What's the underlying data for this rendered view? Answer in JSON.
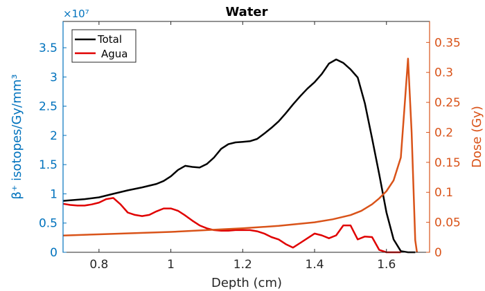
{
  "chart_data": {
    "type": "line",
    "title": "Water",
    "xlabel": "Depth (cm)",
    "ylabel_left": "β⁺ isotopes/Gy/mm³",
    "ylabel_right": "Dose (Gy)",
    "left_axis_exponent": "×10⁷",
    "xlim": [
      0.7,
      1.72
    ],
    "ylim_left": [
      0,
      3.95
    ],
    "ylim_right": [
      0,
      0.385
    ],
    "x_ticks": [
      0.8,
      1.0,
      1.2,
      1.4,
      1.6
    ],
    "x_tick_labels": [
      "0.8",
      "1",
      "1.2",
      "1.4",
      "1.6"
    ],
    "y_left_ticks": [
      0,
      0.5,
      1,
      1.5,
      2,
      2.5,
      3,
      3.5
    ],
    "y_left_tick_labels": [
      "0",
      "0.5",
      "1",
      "1.5",
      "2",
      "2.5",
      "3",
      "3.5"
    ],
    "y_right_ticks": [
      0,
      0.05,
      0.1,
      0.15,
      0.2,
      0.25,
      0.3,
      0.35
    ],
    "y_right_tick_labels": [
      "0",
      "0.05",
      "0.1",
      "0.15",
      "0.2",
      "0.25",
      "0.3",
      "0.35"
    ],
    "grid": false,
    "legend_position": "top-left",
    "series": [
      {
        "name": "Total",
        "axis": "left",
        "color": "#000000",
        "points": [
          [
            0.7,
            0.88
          ],
          [
            0.72,
            0.89
          ],
          [
            0.76,
            0.91
          ],
          [
            0.8,
            0.94
          ],
          [
            0.84,
            1.0
          ],
          [
            0.88,
            1.06
          ],
          [
            0.92,
            1.11
          ],
          [
            0.96,
            1.17
          ],
          [
            0.98,
            1.22
          ],
          [
            1.0,
            1.3
          ],
          [
            1.02,
            1.41
          ],
          [
            1.04,
            1.48
          ],
          [
            1.06,
            1.46
          ],
          [
            1.08,
            1.45
          ],
          [
            1.1,
            1.51
          ],
          [
            1.12,
            1.62
          ],
          [
            1.14,
            1.77
          ],
          [
            1.16,
            1.85
          ],
          [
            1.18,
            1.88
          ],
          [
            1.2,
            1.89
          ],
          [
            1.22,
            1.9
          ],
          [
            1.24,
            1.94
          ],
          [
            1.26,
            2.03
          ],
          [
            1.28,
            2.13
          ],
          [
            1.3,
            2.24
          ],
          [
            1.32,
            2.38
          ],
          [
            1.34,
            2.53
          ],
          [
            1.36,
            2.67
          ],
          [
            1.38,
            2.8
          ],
          [
            1.4,
            2.91
          ],
          [
            1.42,
            3.05
          ],
          [
            1.44,
            3.23
          ],
          [
            1.46,
            3.3
          ],
          [
            1.48,
            3.24
          ],
          [
            1.5,
            3.13
          ],
          [
            1.52,
            2.99
          ],
          [
            1.54,
            2.55
          ],
          [
            1.56,
            1.95
          ],
          [
            1.58,
            1.33
          ],
          [
            1.6,
            0.68
          ],
          [
            1.62,
            0.22
          ],
          [
            1.64,
            0.02
          ],
          [
            1.66,
            0.0
          ],
          [
            1.68,
            0.0
          ]
        ]
      },
      {
        "name": "Agua",
        "axis": "left",
        "color": "#E00000",
        "points": [
          [
            0.7,
            0.83
          ],
          [
            0.72,
            0.81
          ],
          [
            0.74,
            0.8
          ],
          [
            0.76,
            0.8
          ],
          [
            0.78,
            0.82
          ],
          [
            0.8,
            0.85
          ],
          [
            0.82,
            0.91
          ],
          [
            0.84,
            0.93
          ],
          [
            0.86,
            0.82
          ],
          [
            0.88,
            0.68
          ],
          [
            0.9,
            0.64
          ],
          [
            0.92,
            0.62
          ],
          [
            0.94,
            0.64
          ],
          [
            0.96,
            0.7
          ],
          [
            0.98,
            0.75
          ],
          [
            1.0,
            0.75
          ],
          [
            1.02,
            0.71
          ],
          [
            1.04,
            0.63
          ],
          [
            1.06,
            0.54
          ],
          [
            1.08,
            0.46
          ],
          [
            1.1,
            0.41
          ],
          [
            1.12,
            0.38
          ],
          [
            1.14,
            0.37
          ],
          [
            1.16,
            0.37
          ],
          [
            1.18,
            0.38
          ],
          [
            1.2,
            0.38
          ],
          [
            1.22,
            0.38
          ],
          [
            1.24,
            0.36
          ],
          [
            1.26,
            0.32
          ],
          [
            1.28,
            0.26
          ],
          [
            1.3,
            0.22
          ],
          [
            1.32,
            0.14
          ],
          [
            1.34,
            0.08
          ],
          [
            1.36,
            0.16
          ],
          [
            1.38,
            0.24
          ],
          [
            1.4,
            0.32
          ],
          [
            1.42,
            0.29
          ],
          [
            1.44,
            0.24
          ],
          [
            1.46,
            0.29
          ],
          [
            1.48,
            0.46
          ],
          [
            1.5,
            0.46
          ],
          [
            1.52,
            0.22
          ],
          [
            1.54,
            0.27
          ],
          [
            1.56,
            0.26
          ],
          [
            1.58,
            0.04
          ],
          [
            1.6,
            0.0
          ],
          [
            1.62,
            0.0
          ],
          [
            1.64,
            0.0
          ]
        ]
      },
      {
        "name": "",
        "axis": "right",
        "color": "#D95319",
        "points": [
          [
            0.7,
            0.028
          ],
          [
            0.8,
            0.03
          ],
          [
            0.9,
            0.032
          ],
          [
            1.0,
            0.034
          ],
          [
            1.1,
            0.037
          ],
          [
            1.2,
            0.04
          ],
          [
            1.3,
            0.044
          ],
          [
            1.4,
            0.05
          ],
          [
            1.45,
            0.055
          ],
          [
            1.5,
            0.062
          ],
          [
            1.53,
            0.069
          ],
          [
            1.56,
            0.08
          ],
          [
            1.58,
            0.09
          ],
          [
            1.6,
            0.102
          ],
          [
            1.62,
            0.12
          ],
          [
            1.64,
            0.158
          ],
          [
            1.65,
            0.24
          ],
          [
            1.66,
            0.323
          ],
          [
            1.67,
            0.2
          ],
          [
            1.68,
            0.02
          ],
          [
            1.685,
            0.0
          ]
        ]
      }
    ]
  }
}
